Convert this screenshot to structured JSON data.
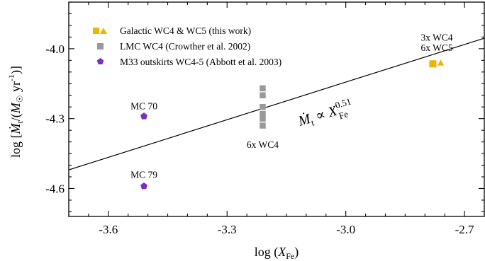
{
  "chart_data": {
    "type": "scatter",
    "title": "",
    "xlabel": "log (X_Fe)",
    "ylabel": "log [Ṁ_t/(M_☉ yr^-1)]",
    "xlim": [
      -3.7,
      -2.65
    ],
    "ylim": [
      -4.72,
      -3.8
    ],
    "x_ticks": [
      -3.6,
      -3.3,
      -3.0,
      -2.7
    ],
    "x_tick_labels": [
      "-3.6",
      "-3.3",
      "-3.0",
      "-2.7"
    ],
    "y_ticks": [
      -4.6,
      -4.3,
      -4.0
    ],
    "y_tick_labels": [
      "-4.6",
      "-4.3",
      "-4.0"
    ],
    "grid": false,
    "legend_position": "top-left",
    "series": [
      {
        "name": "Galactic WC4 & WC5 (this work)",
        "marker": "square-triangle",
        "color": "#f2b200",
        "points": [
          {
            "x": -2.78,
            "y": -4.065,
            "marker": "square"
          },
          {
            "x": -2.76,
            "y": -4.06,
            "marker": "triangle"
          }
        ]
      },
      {
        "name": "LMC WC4 (Crowther et al. 2002)",
        "marker": "square",
        "color": "#999999",
        "points": [
          {
            "x": -3.21,
            "y": -4.17
          },
          {
            "x": -3.21,
            "y": -4.2
          },
          {
            "x": -3.21,
            "y": -4.25
          },
          {
            "x": -3.21,
            "y": -4.28
          },
          {
            "x": -3.21,
            "y": -4.3
          },
          {
            "x": -3.21,
            "y": -4.33
          }
        ]
      },
      {
        "name": "M33 outskirts WC4-5 (Abbott et al. 2003)",
        "marker": "pentagon",
        "color": "#7b2fbe",
        "points": [
          {
            "x": -3.51,
            "y": -4.29
          },
          {
            "x": -3.51,
            "y": -4.59
          }
        ]
      }
    ],
    "fit_line": {
      "color": "#000000",
      "points": [
        [
          -3.7,
          -4.52
        ],
        [
          -2.65,
          -3.955
        ]
      ]
    },
    "annotations": [
      {
        "text": "3x WC4",
        "x": -2.77,
        "y": -3.965
      },
      {
        "text": "6x WC5",
        "x": -2.77,
        "y": -4.01
      },
      {
        "text": "6x WC4",
        "x": -3.21,
        "y": -4.425
      },
      {
        "text": "MC 70",
        "x": -3.51,
        "y": -4.26
      },
      {
        "text": "MC 79",
        "x": -3.51,
        "y": -4.555
      }
    ],
    "relation": {
      "lhs": "Ṁ",
      "lhs_sub": "t",
      "operator": "∝",
      "base": "X",
      "base_sub": "Fe",
      "exponent": "0.51"
    }
  }
}
